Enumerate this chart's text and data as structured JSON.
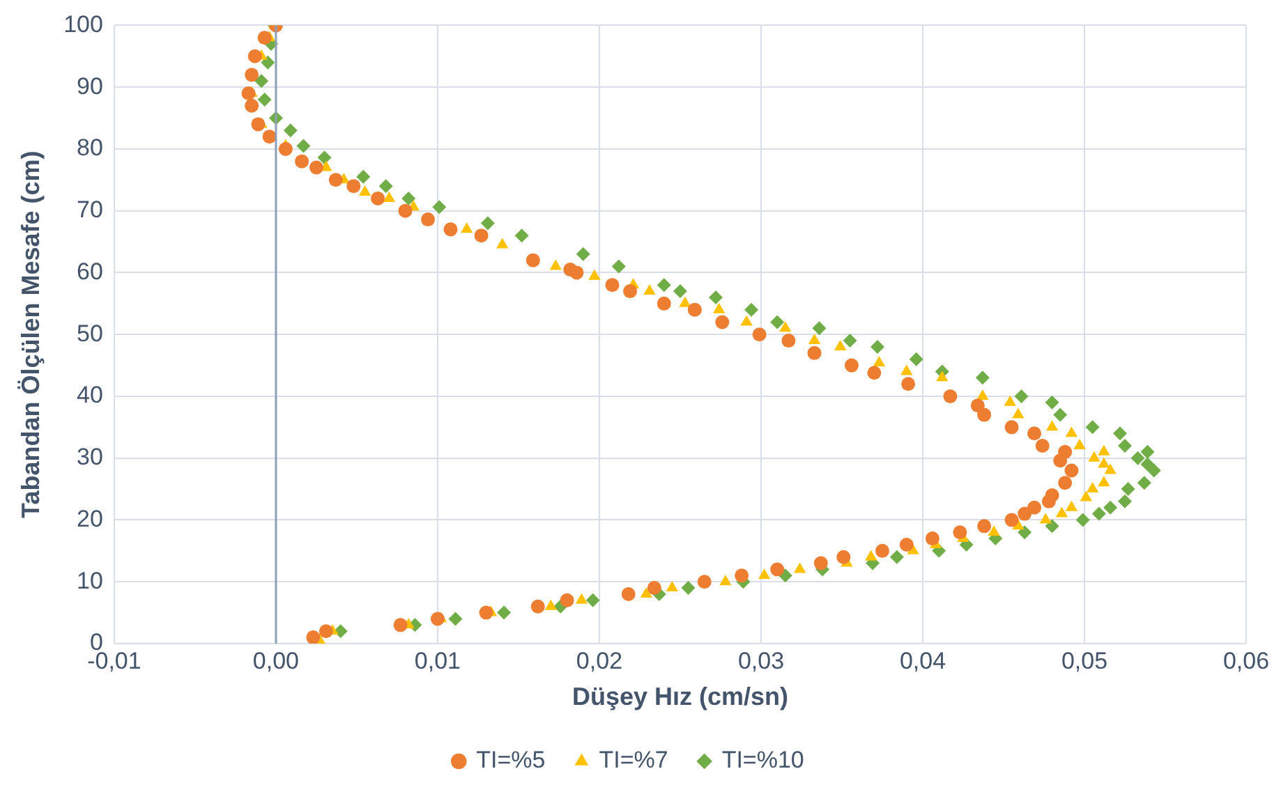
{
  "chart_data": {
    "type": "scatter",
    "xlabel": "Düşey Hız (cm/sn)",
    "ylabel": "Tabandan Ölçülen Mesafe (cm)",
    "xlim": [
      -0.01,
      0.06
    ],
    "xticks": [
      {
        "value": -0.01,
        "label": "-0,01"
      },
      {
        "value": 0,
        "label": "0,00"
      },
      {
        "value": 0.01,
        "label": "0,01"
      },
      {
        "value": 0.02,
        "label": "0,02"
      },
      {
        "value": 0.03,
        "label": "0,03"
      },
      {
        "value": 0.04,
        "label": "0,04"
      },
      {
        "value": 0.05,
        "label": "0,05"
      },
      {
        "value": 0.06,
        "label": "0,06"
      }
    ],
    "ylim": [
      0,
      100
    ],
    "yticks": [
      0,
      10,
      20,
      30,
      40,
      50,
      60,
      70,
      80,
      90,
      100
    ],
    "grid": true,
    "legend": "bottom",
    "ref_lines": [
      {
        "axis": "x",
        "value": 0,
        "color": "#8ea0b8"
      }
    ],
    "series": [
      {
        "name": "TI=%5",
        "color": "#ed7d31",
        "marker": "circle",
        "x": [
          0.0023,
          0.0031,
          0.0077,
          0.01,
          0.013,
          0.0162,
          0.018,
          0.0218,
          0.0234,
          0.0265,
          0.0288,
          0.031,
          0.0337,
          0.0351,
          0.0375,
          0.039,
          0.0406,
          0.0423,
          0.0438,
          0.0455,
          0.0463,
          0.0469,
          0.0478,
          0.048,
          0.0488,
          0.0492,
          0.0485,
          0.0488,
          0.0474,
          0.0469,
          0.0455,
          0.0438,
          0.0434,
          0.0417,
          0.0391,
          0.037,
          0.0356,
          0.0333,
          0.0317,
          0.0299,
          0.0276,
          0.0259,
          0.024,
          0.0219,
          0.0208,
          0.0186,
          0.0182,
          0.0159,
          0.0127,
          0.0108,
          0.0094,
          0.008,
          0.0063,
          0.0048,
          0.0037,
          0.0025,
          0.0016,
          0.0006,
          -0.0004,
          -0.0011,
          -0.0015,
          -0.0017,
          -0.0015,
          -0.0013,
          -0.0007,
          0
        ],
        "values": [
          1,
          2,
          3,
          4,
          5,
          6,
          7,
          8,
          9,
          10,
          11,
          12,
          13,
          14,
          15,
          16,
          17,
          18,
          19,
          20,
          21,
          22,
          23,
          24,
          26,
          28,
          29.6,
          31,
          32,
          34,
          35,
          37,
          38.5,
          40,
          42,
          43.8,
          45,
          47,
          49,
          50,
          52,
          54,
          55,
          57,
          58,
          60,
          60.5,
          62,
          66,
          67,
          68.6,
          70,
          72,
          74,
          75,
          77,
          78,
          80,
          82,
          84,
          87,
          89,
          92,
          95,
          98,
          100
        ]
      },
      {
        "name": "TI=%7",
        "color": "#ffc000",
        "marker": "triangle",
        "x": [
          0.0027,
          0.0035,
          0.0082,
          0.0102,
          0.0133,
          0.017,
          0.0189,
          0.0229,
          0.0245,
          0.0278,
          0.0302,
          0.0324,
          0.0353,
          0.0368,
          0.0394,
          0.0408,
          0.0425,
          0.0444,
          0.0459,
          0.0476,
          0.0486,
          0.0492,
          0.0501,
          0.0505,
          0.0512,
          0.0516,
          0.0512,
          0.0506,
          0.0512,
          0.0497,
          0.0492,
          0.048,
          0.0459,
          0.0454,
          0.0437,
          0.0412,
          0.039,
          0.0373,
          0.0349,
          0.0333,
          0.0315,
          0.0291,
          0.0274,
          0.0253,
          0.0231,
          0.0221,
          0.0197,
          0.0173,
          0.014,
          0.0118,
          0.0085,
          0.007,
          0.0055,
          0.0042,
          0.0031,
          0.0006,
          -0.0009,
          -0.0015,
          -0.0009,
          -0.0004,
          -0.0001
        ],
        "values": [
          0.5,
          2,
          3,
          4,
          5,
          6,
          7,
          8,
          9,
          10,
          11,
          12,
          13,
          14,
          15,
          16,
          17,
          18,
          19,
          20,
          21,
          22,
          23.6,
          25,
          26,
          28,
          29,
          30,
          31,
          32,
          34,
          35,
          37,
          39,
          40,
          43,
          44,
          45.4,
          48,
          49,
          51,
          52,
          54,
          55,
          57,
          58,
          59.4,
          61,
          64.5,
          67,
          70.6,
          72,
          73,
          75,
          77,
          80.5,
          84,
          89,
          95,
          98,
          100
        ]
      },
      {
        "name": "TI=%10",
        "color": "#70ad47",
        "marker": "diamond",
        "x": [
          0.004,
          0.0086,
          0.0111,
          0.0141,
          0.0176,
          0.0196,
          0.0237,
          0.0255,
          0.0289,
          0.0315,
          0.0338,
          0.0369,
          0.0384,
          0.041,
          0.0427,
          0.0445,
          0.0463,
          0.048,
          0.0499,
          0.0509,
          0.0516,
          0.0525,
          0.0527,
          0.0537,
          0.0543,
          0.0539,
          0.0533,
          0.0539,
          0.0525,
          0.0522,
          0.0505,
          0.0485,
          0.048,
          0.0461,
          0.0437,
          0.0412,
          0.0396,
          0.0372,
          0.0355,
          0.0336,
          0.031,
          0.0294,
          0.0272,
          0.025,
          0.024,
          0.0212,
          0.019,
          0.0152,
          0.0131,
          0.0101,
          0.0082,
          0.0068,
          0.0054,
          0.003,
          0.0017,
          0.0009,
          0,
          -0.0007,
          -0.0009,
          -0.0005,
          -0.0003,
          -0.0001
        ],
        "values": [
          2,
          3,
          4,
          5,
          6,
          7,
          8,
          9,
          10,
          11,
          12,
          13,
          14,
          15,
          16,
          17,
          18,
          19,
          20,
          21,
          22,
          23,
          25,
          26,
          28,
          29,
          30,
          31,
          32,
          34,
          35,
          37,
          39,
          40,
          43,
          44,
          46,
          48,
          49,
          51,
          52,
          54,
          56,
          57,
          58,
          61,
          63,
          66,
          68,
          70.6,
          72,
          74,
          75.5,
          78.6,
          80.5,
          83,
          85,
          88,
          91,
          94,
          97,
          100
        ]
      }
    ]
  }
}
